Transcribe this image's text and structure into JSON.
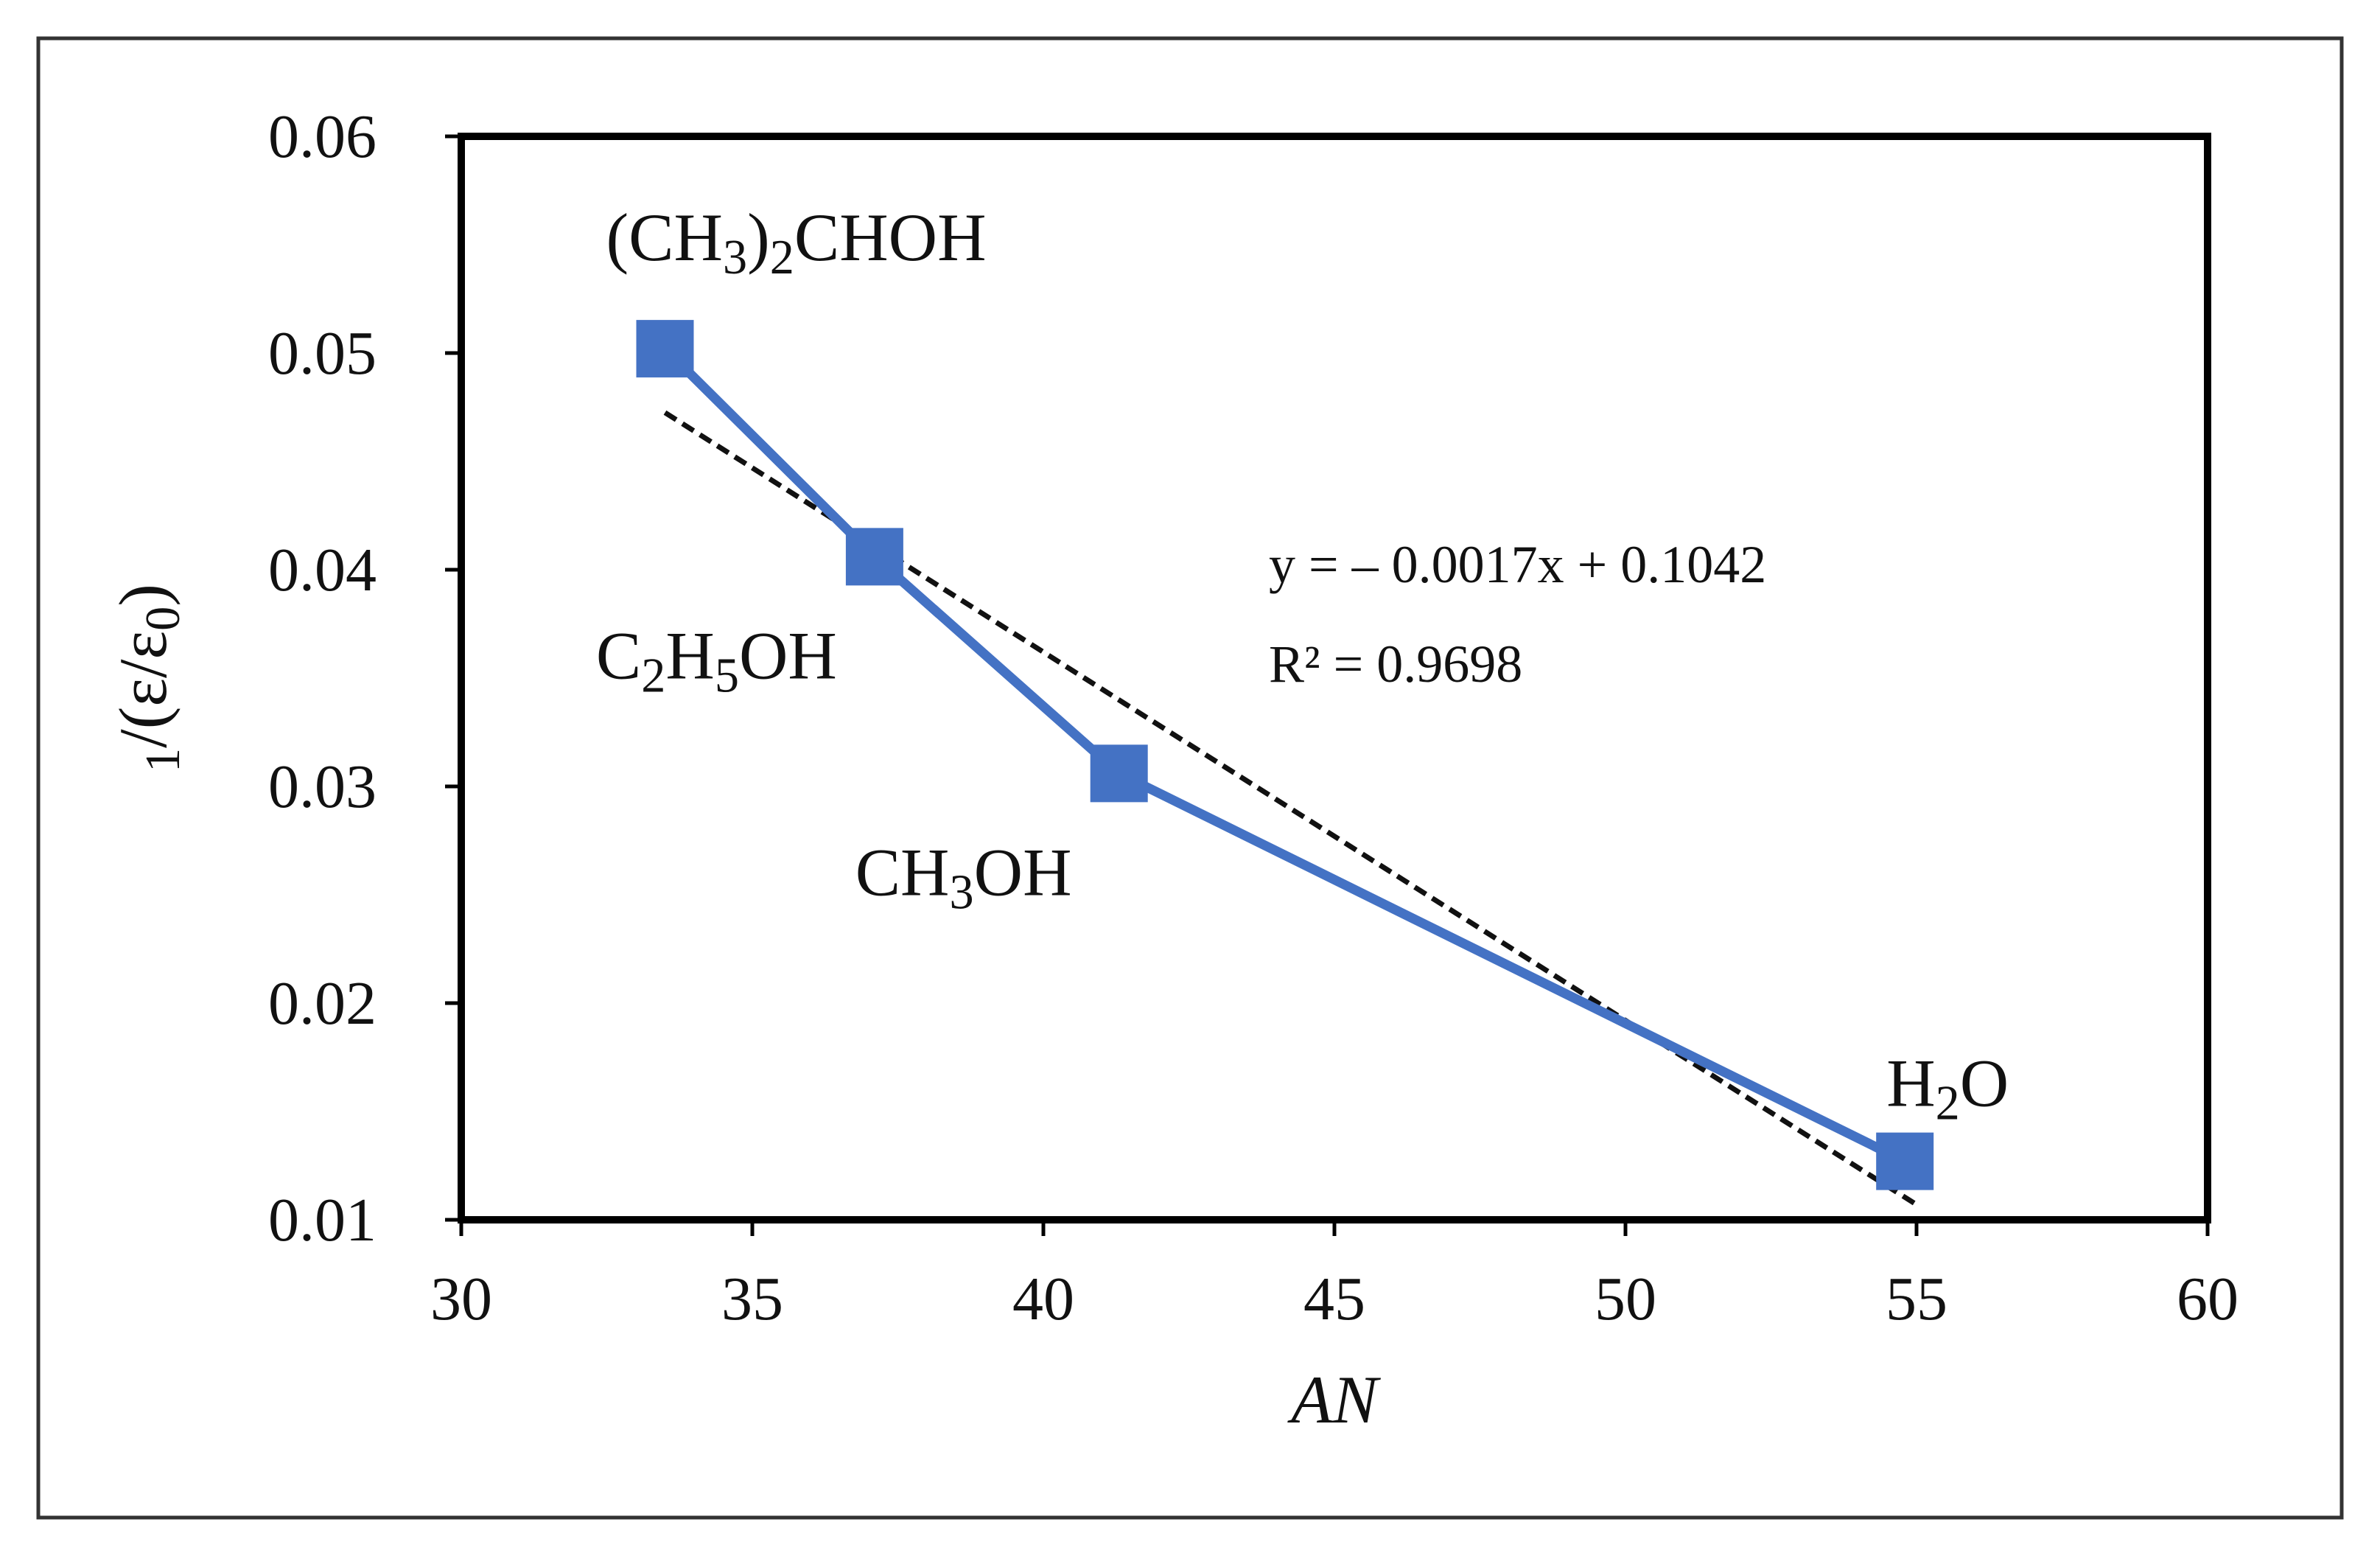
{
  "chart_data": {
    "type": "scatter",
    "xlabel": "AN",
    "ylabel": "1/(ε/ε0)",
    "xlim": [
      30,
      60
    ],
    "ylim": [
      0.01,
      0.06
    ],
    "x_ticks": [
      "30",
      "35",
      "40",
      "45",
      "50",
      "55",
      "60"
    ],
    "y_ticks": [
      "0.06",
      "0.05",
      "0.04",
      "0.03",
      "0.02",
      "0.01"
    ],
    "grid": false,
    "legend": "none",
    "series": [
      {
        "x": [
          33.5,
          37.1,
          41.3,
          54.8
        ],
        "y": [
          0.0502,
          0.0406,
          0.0306,
          0.0127
        ],
        "color": "#4472C4",
        "marker": "square",
        "connected": true
      }
    ],
    "point_labels": [
      "(CH3)2CHOH",
      "C2H5OH",
      "CH3OH",
      "H2O"
    ],
    "trendline": {
      "slope": -0.0017,
      "intercept": 0.1042,
      "x_range": [
        33.5,
        55
      ],
      "style": "dashed",
      "color": "#111111",
      "equation": "y = – 0.0017x + 0.1042",
      "r_squared": "R² = 0.9698"
    },
    "colors": {
      "series": "#4472C4",
      "trendline": "#111111",
      "axis": "#000000",
      "outer_frame": "#333333"
    }
  }
}
